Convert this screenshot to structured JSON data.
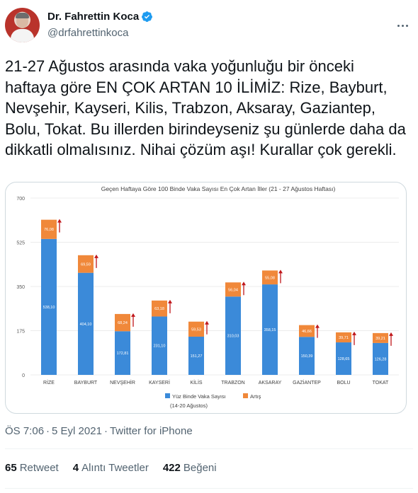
{
  "author": {
    "display_name": "Dr. Fahrettin Koca",
    "handle": "@drfahrettinkoca"
  },
  "tweet": {
    "text": "21-27 Ağustos arasında vaka yoğunluğu bir önceki haftaya göre EN ÇOK ARTAN 10 İLİMİZ: Rize, Bayburt, Nevşehir, Kayseri, Kilis, Trabzon, Aksaray, Gaziantep, Bolu, Tokat. Bu illerden birindeyseniz şu günlerde daha da dikkatli olmalısınız. Nihai çözüm aşı! Kurallar çok gerekli.",
    "time": "ÖS 7:06",
    "date": "5 Eyl 2021",
    "source": "Twitter for iPhone"
  },
  "stats": {
    "retweets_count": "65",
    "retweets_label": "Retweet",
    "quotes_count": "4",
    "quotes_label": "Alıntı Tweetler",
    "likes_count": "422",
    "likes_label": "Beğeni"
  },
  "colors": {
    "verified": "#1d9bf0",
    "base_bar": "#3b8ad9",
    "increase_bar": "#f0883a",
    "arrow": "#c0171b"
  },
  "icons": {
    "verified": "verified-badge-icon",
    "more": "more-dots-icon",
    "up_arrow": "up-arrow-icon"
  },
  "chart_data": {
    "type": "bar",
    "stacked": true,
    "title": "Geçen Haftaya Göre 100 Binde Vaka Sayısı En Çok Artan İller (21 - 27 Ağustos Haftası)",
    "categories": [
      "RİZE",
      "BAYBURT",
      "NEVŞEHİR",
      "KAYSERİ",
      "KİLİS",
      "TRABZON",
      "AKSARAY",
      "GAZİANTEP",
      "BOLU",
      "TOKAT"
    ],
    "series": [
      {
        "name": "Yüz Binde Vaka Sayısı (14-20 Ağustos)",
        "values": [
          538.1,
          404.1,
          172.81,
          231.1,
          151.27,
          310.03,
          358.15,
          150.39,
          128.65,
          126.28
        ],
        "labels": [
          "538,10",
          "404,10",
          "172,81",
          "231,10",
          "151,27",
          "310,03",
          "358,15",
          "150,39",
          "128,65",
          "126,28"
        ]
      },
      {
        "name": "Artış",
        "values": [
          76.08,
          69.59,
          68.24,
          63.18,
          59.53,
          56.04,
          55.08,
          46.66,
          39.71,
          39.21
        ],
        "labels": [
          "76,08",
          "69,59",
          "68,24",
          "63,18",
          "59,53",
          "56,04",
          "55,08",
          "46,66",
          "39,71",
          "39,21"
        ]
      }
    ],
    "yticks": [
      "0",
      "175",
      "350",
      "525",
      "700"
    ],
    "ylim": [
      0,
      700
    ],
    "legend_position": "bottom",
    "legend": {
      "base": "Yüz Binde Vaka Sayısı",
      "base_sub": "(14-20 Ağustos)",
      "increase": "Artış"
    }
  }
}
